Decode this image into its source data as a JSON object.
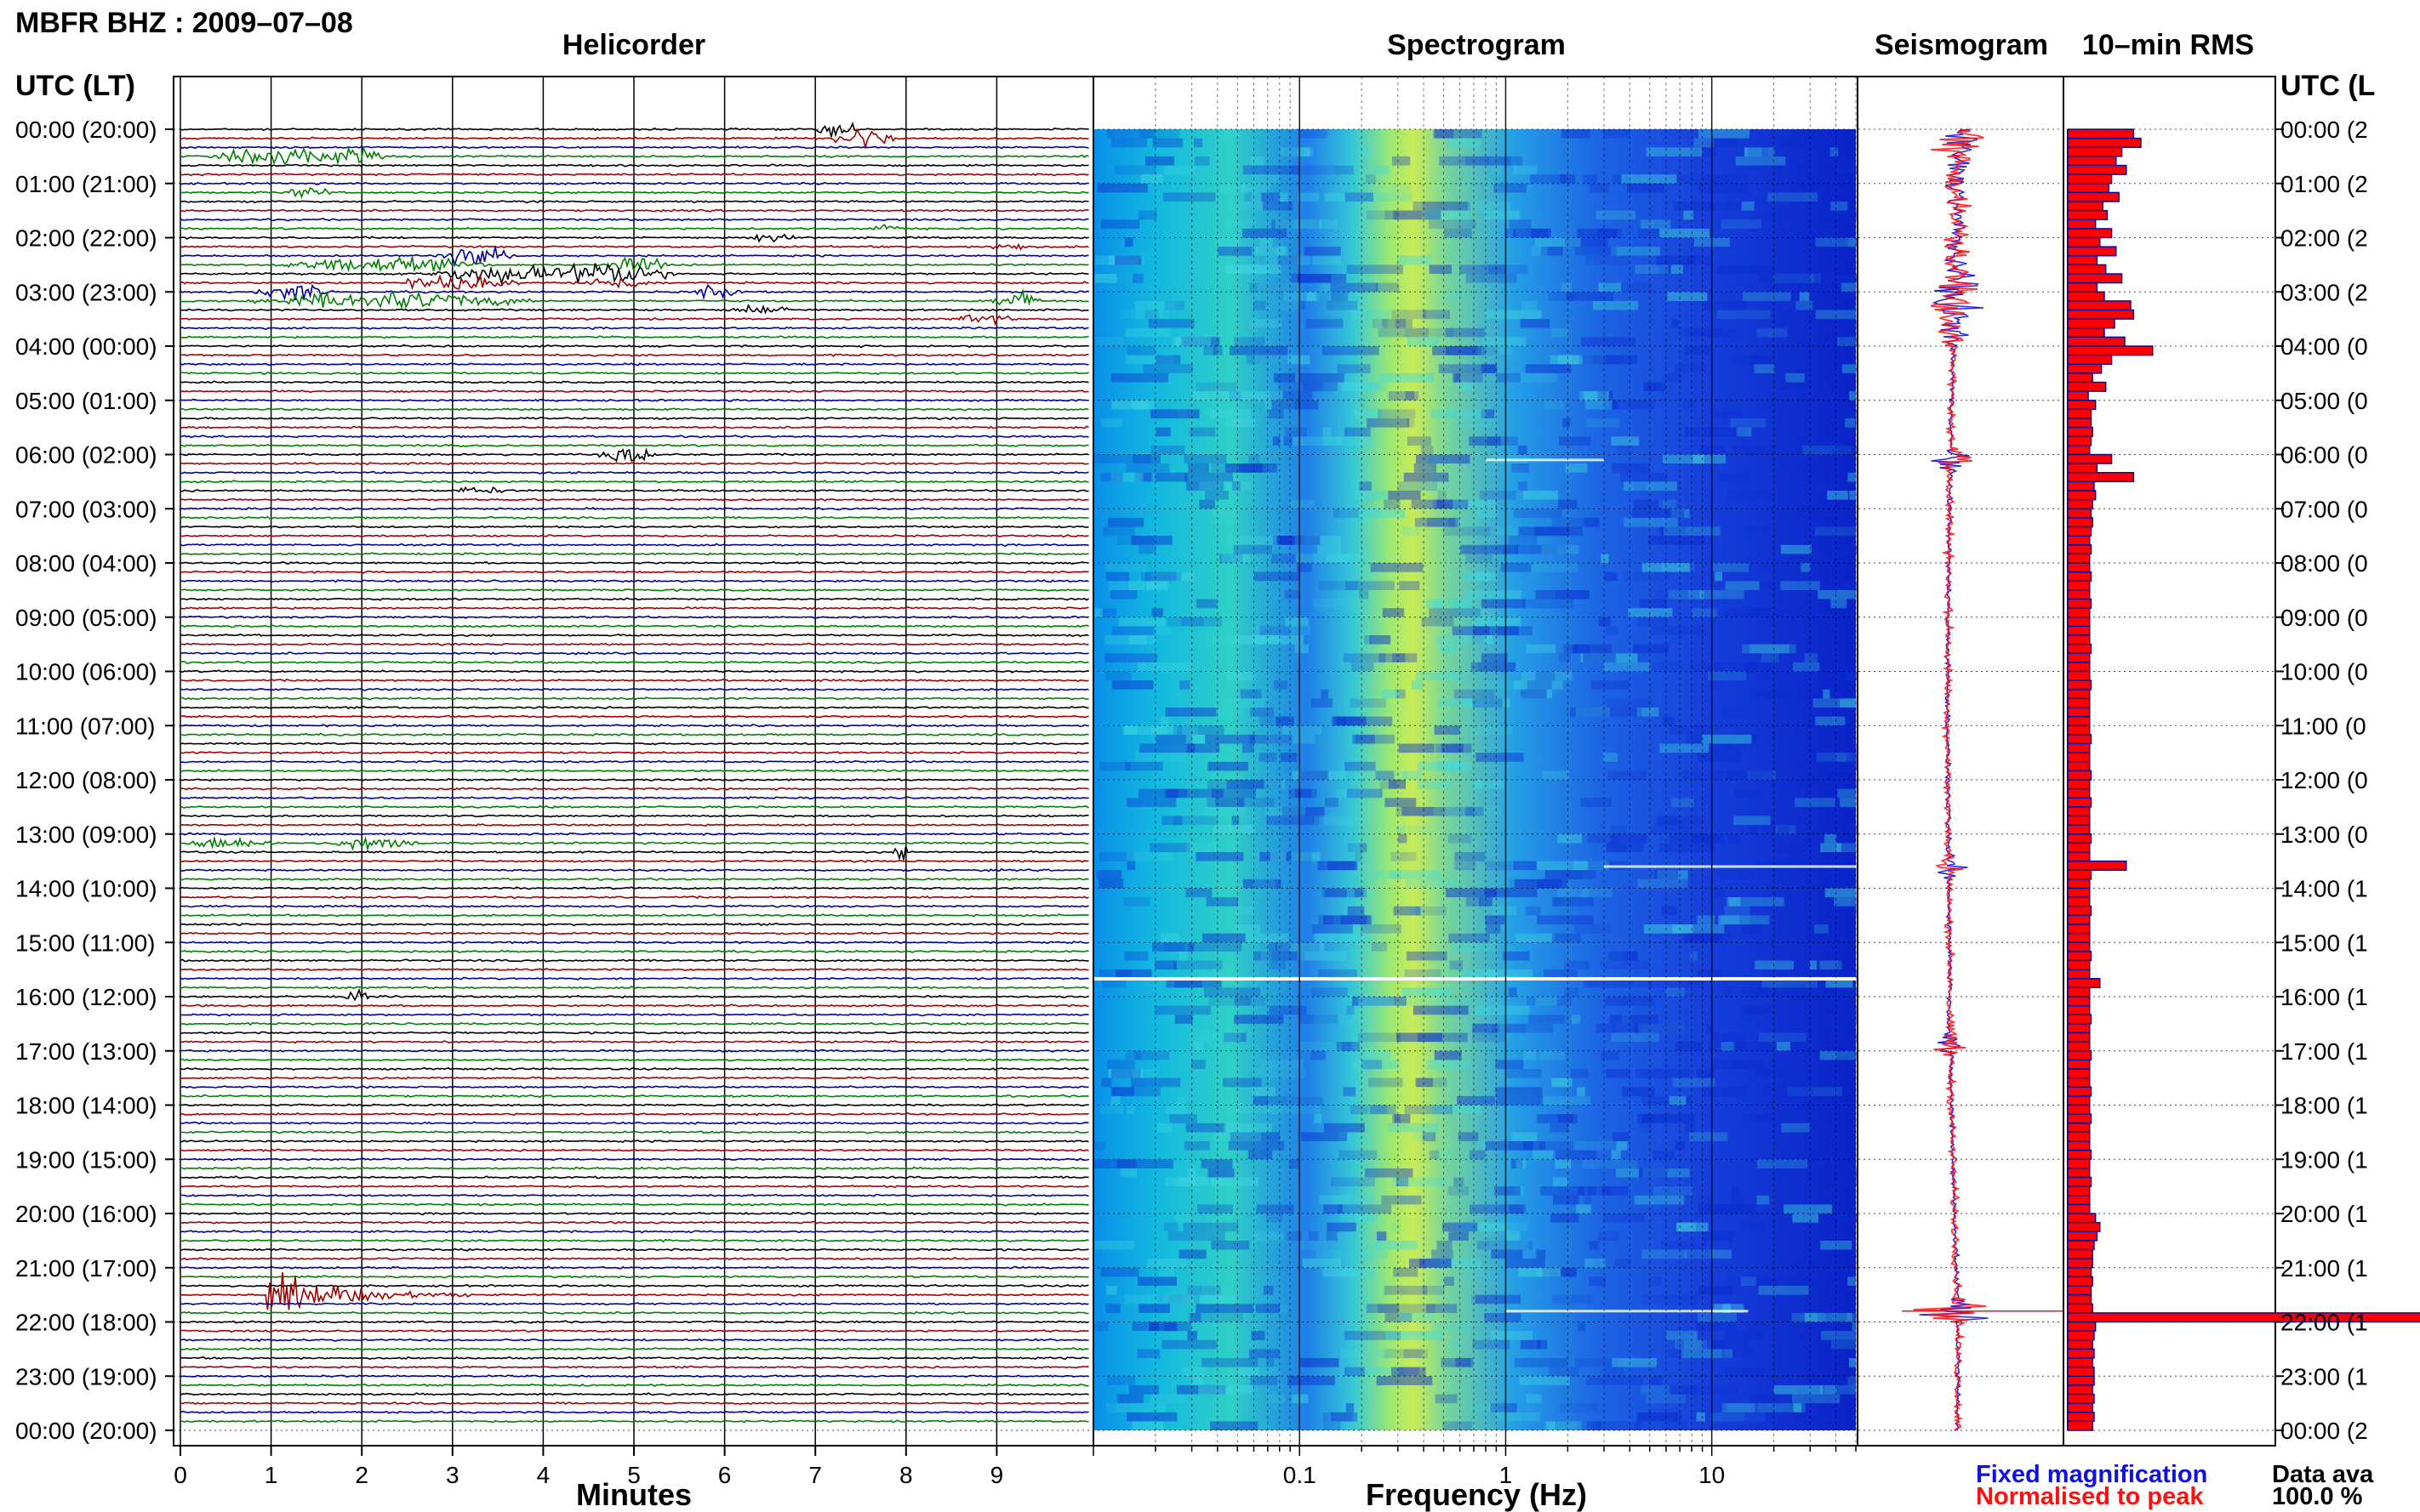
{
  "title": "MBFR BHZ : 2009–07–08",
  "panels": {
    "helicorder": "Helicorder",
    "spectrogram": "Spectrogram",
    "seismogram": "Seismogram",
    "rms": "10–min RMS"
  },
  "axis_heading_left": "UTC (LT)",
  "axis_heading_right": "UTC (L",
  "axes": {
    "helicorder_xlabel": "Minutes",
    "spectrogram_xlabel": "Frequency (Hz)"
  },
  "legend": {
    "fixed": "Fixed magnification",
    "normalised": "Normalised to peak",
    "fixed_color": "#1010e0",
    "normalised_color": "#ff1010"
  },
  "data_availability": {
    "label": "Data ava",
    "value": "100.0 %"
  },
  "colors": {
    "trace_cycle": [
      "#000000",
      "#a00000",
      "#0000a0",
      "#008000"
    ],
    "rms_fill": "#ff0000",
    "rms_edge": "#0000a0",
    "spectrogram_low": "#0a2fd8",
    "spectrogram_high": "#f2ee10"
  },
  "chart_data": [
    {
      "type": "line",
      "panel": "helicorder",
      "x_ticks": [
        0,
        1,
        2,
        3,
        4,
        5,
        6,
        7,
        8,
        9
      ],
      "xlim": [
        0,
        10
      ],
      "xlabel": "Minutes",
      "y_tick_labels_left": [
        "00:00 (20:00)",
        "01:00 (21:00)",
        "02:00 (22:00)",
        "03:00 (23:00)",
        "04:00 (00:00)",
        "05:00 (01:00)",
        "06:00 (02:00)",
        "07:00 (03:00)",
        "08:00 (04:00)",
        "09:00 (05:00)",
        "10:00 (06:00)",
        "11:00 (07:00)",
        "12:00 (08:00)",
        "13:00 (09:00)",
        "14:00 (10:00)",
        "15:00 (11:00)",
        "16:00 (12:00)",
        "17:00 (13:00)",
        "18:00 (14:00)",
        "19:00 (15:00)",
        "20:00 (16:00)",
        "21:00 (17:00)",
        "22:00 (18:00)",
        "23:00 (19:00)",
        "00:00 (20:00)"
      ],
      "y_tick_labels_right": [
        "00:00 (2",
        "01:00 (2",
        "02:00 (2",
        "03:00 (2",
        "04:00 (0",
        "05:00 (0",
        "06:00 (0",
        "07:00 (0",
        "08:00 (0",
        "09:00 (0",
        "10:00 (0",
        "11:00 (0",
        "12:00 (0",
        "13:00 (0",
        "14:00 (1",
        "15:00 (1",
        "16:00 (1",
        "17:00 (1",
        "18:00 (1",
        "19:00 (1",
        "20:00 (1",
        "21:00 (1",
        "22:00 (1",
        "23:00 (1",
        "00:00 (2"
      ],
      "trace_count": 144,
      "trace_minutes": 10,
      "events": [
        {
          "line": 0,
          "start_min": 7.0,
          "dur_min": 0.5,
          "amp": 1.0
        },
        {
          "line": 1,
          "start_min": 7.1,
          "dur_min": 0.8,
          "amp": 1.4
        },
        {
          "line": 3,
          "start_min": 0.3,
          "dur_min": 1.5,
          "amp": 0.9
        },
        {
          "line": 3,
          "start_min": 1.5,
          "dur_min": 0.8,
          "amp": 1.0
        },
        {
          "line": 7,
          "start_min": 1.1,
          "dur_min": 0.6,
          "amp": 0.6
        },
        {
          "line": 11,
          "start_min": 7.5,
          "dur_min": 0.5,
          "amp": 0.5
        },
        {
          "line": 12,
          "start_min": 6.2,
          "dur_min": 0.6,
          "amp": 0.5
        },
        {
          "line": 13,
          "start_min": 8.9,
          "dur_min": 0.5,
          "amp": 0.6
        },
        {
          "line": 14,
          "start_min": 2.8,
          "dur_min": 0.9,
          "amp": 1.2
        },
        {
          "line": 15,
          "start_min": 0.9,
          "dur_min": 2.6,
          "amp": 0.8
        },
        {
          "line": 15,
          "start_min": 4.7,
          "dur_min": 0.7,
          "amp": 1.0
        },
        {
          "line": 16,
          "start_min": 2.6,
          "dur_min": 2.0,
          "amp": 0.9
        },
        {
          "line": 16,
          "start_min": 4.1,
          "dur_min": 1.4,
          "amp": 1.3
        },
        {
          "line": 17,
          "start_min": 2.3,
          "dur_min": 1.5,
          "amp": 0.8
        },
        {
          "line": 17,
          "start_min": 4.3,
          "dur_min": 1.0,
          "amp": 0.7
        },
        {
          "line": 18,
          "start_min": 0.8,
          "dur_min": 0.9,
          "amp": 1.0
        },
        {
          "line": 18,
          "start_min": 5.6,
          "dur_min": 0.6,
          "amp": 0.8
        },
        {
          "line": 19,
          "start_min": 0.6,
          "dur_min": 3.4,
          "amp": 1.0
        },
        {
          "line": 19,
          "start_min": 8.9,
          "dur_min": 0.6,
          "amp": 1.2
        },
        {
          "line": 20,
          "start_min": 6.0,
          "dur_min": 0.8,
          "amp": 0.5
        },
        {
          "line": 21,
          "start_min": 8.5,
          "dur_min": 0.7,
          "amp": 0.6
        },
        {
          "line": 36,
          "start_min": 4.6,
          "dur_min": 0.7,
          "amp": 1.2
        },
        {
          "line": 40,
          "start_min": 3.0,
          "dur_min": 0.6,
          "amp": 0.5
        },
        {
          "line": 79,
          "start_min": 0.0,
          "dur_min": 1.1,
          "amp": 0.7
        },
        {
          "line": 79,
          "start_min": 1.6,
          "dur_min": 1.1,
          "amp": 0.7
        },
        {
          "line": 80,
          "start_min": 7.8,
          "dur_min": 0.3,
          "amp": 0.8
        },
        {
          "line": 96,
          "start_min": 1.8,
          "dur_min": 0.3,
          "amp": 0.9
        },
        {
          "line": 129,
          "start_min": 0.95,
          "dur_min": 2.3,
          "amp": 3.2
        }
      ]
    },
    {
      "type": "heatmap",
      "panel": "spectrogram",
      "xlabel": "Frequency (Hz)",
      "x_scale": "log",
      "xlim": [
        0.01,
        50
      ],
      "x_ticks": [
        0.1,
        1,
        10
      ],
      "x_tick_labels": [
        "0.1",
        "1",
        "10"
      ],
      "rows": 144,
      "peak_frequency_hz": 0.45,
      "bright_lines": [
        {
          "hour": 6.1,
          "f_from": 0.8,
          "f_to": 3
        },
        {
          "hour": 13.6,
          "f_from": 3,
          "f_to": 50
        },
        {
          "hour": 21.8,
          "f_from": 1,
          "f_to": 15
        }
      ],
      "gap_hours": [
        15.67
      ]
    },
    {
      "type": "line",
      "panel": "seismogram",
      "series": [
        {
          "name": "Fixed magnification",
          "color": "#1010e0"
        },
        {
          "name": "Normalised to peak",
          "color": "#ff1010"
        }
      ],
      "spike_hours": [
        0.2,
        2.9,
        3.3,
        6.1,
        13.6,
        16.9,
        21.8
      ]
    },
    {
      "type": "bar",
      "panel": "rms",
      "orientation": "horizontal",
      "bins_per_hour": 6,
      "values": [
        0.45,
        0.5,
        0.37,
        0.33,
        0.4,
        0.3,
        0.28,
        0.35,
        0.24,
        0.27,
        0.19,
        0.3,
        0.22,
        0.33,
        0.2,
        0.26,
        0.37,
        0.2,
        0.25,
        0.43,
        0.45,
        0.32,
        0.25,
        0.39,
        0.58,
        0.3,
        0.23,
        0.17,
        0.26,
        0.14,
        0.19,
        0.16,
        0.16,
        0.17,
        0.16,
        0.15,
        0.3,
        0.2,
        0.45,
        0.18,
        0.19,
        0.17,
        0.16,
        0.17,
        0.16,
        0.15,
        0.16,
        0.15,
        0.15,
        0.16,
        0.15,
        0.15,
        0.16,
        0.15,
        0.15,
        0.15,
        0.15,
        0.16,
        0.15,
        0.15,
        0.15,
        0.16,
        0.15,
        0.15,
        0.15,
        0.15,
        0.15,
        0.16,
        0.15,
        0.15,
        0.15,
        0.16,
        0.15,
        0.15,
        0.16,
        0.15,
        0.15,
        0.15,
        0.16,
        0.15,
        0.15,
        0.4,
        0.16,
        0.15,
        0.15,
        0.15,
        0.16,
        0.15,
        0.15,
        0.15,
        0.15,
        0.16,
        0.15,
        0.15,
        0.22,
        0.15,
        0.15,
        0.15,
        0.16,
        0.15,
        0.15,
        0.15,
        0.16,
        0.15,
        0.15,
        0.15,
        0.16,
        0.15,
        0.15,
        0.16,
        0.15,
        0.15,
        0.15,
        0.16,
        0.15,
        0.15,
        0.16,
        0.15,
        0.15,
        0.15,
        0.19,
        0.22,
        0.2,
        0.18,
        0.17,
        0.17,
        0.16,
        0.17,
        0.16,
        0.16,
        0.17,
        2.5,
        0.19,
        0.18,
        0.17,
        0.18,
        0.17,
        0.18,
        0.18,
        0.17,
        0.18,
        0.17,
        0.18,
        0.17
      ]
    }
  ]
}
